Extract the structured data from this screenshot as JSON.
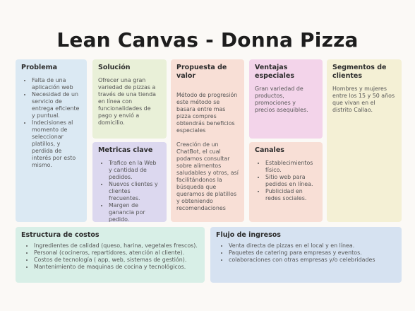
{
  "title": "Lean Canvas - Donna Pizza",
  "problema": {
    "heading": "Problema",
    "items": [
      "Falta de una aplicación web",
      "Necesidad de un servicio de entrega eficiente y puntual.",
      "Indecisiones al momento de seleccionar platillos, y perdida de interés por esto mismo."
    ]
  },
  "solucion": {
    "heading": "Solución",
    "text": "Ofrecer una gran variedad de pizzas a través de una tienda en línea con funcionalidades de pago y envió a domicilio."
  },
  "metricas": {
    "heading": "Metricas clave",
    "items": [
      "Trafico en la Web y cantidad de pedidos.",
      "Nuevos clientes y clientes frecuentes.",
      "Margen de ganancia por pedido."
    ]
  },
  "propuesta": {
    "heading": "Propuesta de valor",
    "p1": "Método de progresión este método se basara entre mas pizza compres obtendrás beneficios especiales",
    "p2": "Creación de un ChatBot, el cual podamos consultar sobre alimentos saludables y otros, así facilitándonos la búsqueda que queramos de platillos y obteniendo recomendaciones"
  },
  "ventajas": {
    "heading": "Ventajas especiales",
    "text": "Gran variedad de productos, promociones y precios asequibles."
  },
  "canales": {
    "heading": "Canales",
    "items": [
      "Establecimientos físico.",
      "Sitio web para pedidos en línea.",
      "Publicidad en redes sociales."
    ]
  },
  "segmentos": {
    "heading": "Segmentos de clientes",
    "text": "Hombres y mujeres entre los 15 y 50 años que vivan en el distrito Callao."
  },
  "costos": {
    "heading": "Estructura de costos",
    "items": [
      "Ingredientes de calidad (queso, harina, vegetales frescos).",
      "Personal (cocineros, repartidores, atención al cliente).",
      "Costos de tecnología ( app, web, sistemas de gestión).",
      "Mantenimiento de maquinas de cocina y tecnológicos."
    ]
  },
  "ingresos": {
    "heading": "Flujo de ingresos",
    "items": [
      "Venta directa de pizzas en el local y en línea.",
      "Paquetes de catering para empresas y eventos.",
      "colaboraciones con otras empresas y/o celebridades"
    ]
  }
}
